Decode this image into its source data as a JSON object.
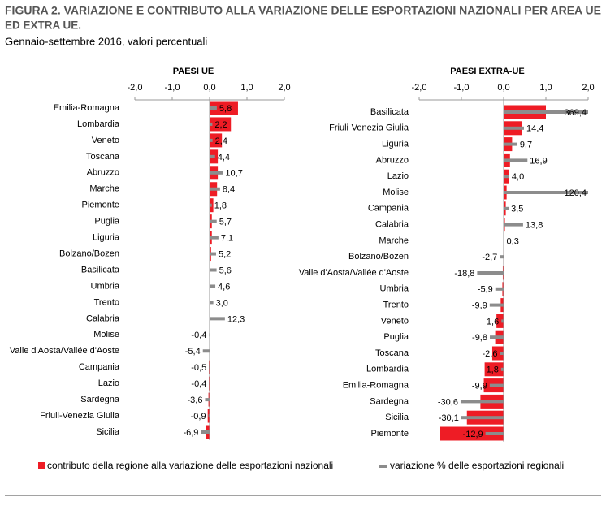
{
  "title": [
    "FIGURA 2. VARIAZIONE E CONTRIBUTO ALLA VARIAZIONE DELLE ESPORTAZIONI NAZIONALI PER AREA UE",
    "ED EXTRA UE."
  ],
  "subtitle": "Gennaio-settembre 2016, valori percentuali",
  "chart_data": [
    {
      "type": "bar",
      "orientation": "horizontal",
      "title": "PAESI UE",
      "categories": [
        "Emilia-Romagna",
        "Lombardia",
        "Veneto",
        "Toscana",
        "Abruzzo",
        "Marche",
        "Piemonte",
        "Puglia",
        "Liguria",
        "Bolzano/Bozen",
        "Basilicata",
        "Umbria",
        "Trento",
        "Calabria",
        "Molise",
        "Valle d'Aosta/Vallée d'Aoste",
        "Campania",
        "Lazio",
        "Sardegna",
        "Friuli-Venezia Giulia",
        "Sicilia"
      ],
      "xlim": [
        -2,
        2
      ],
      "x2lim": [
        -60,
        60
      ],
      "xticks": [
        {
          "value": -2,
          "label": "-2,0"
        },
        {
          "value": -1,
          "label": "-1,0"
        },
        {
          "value": 0,
          "label": "0,0"
        },
        {
          "value": 1,
          "label": "1,0"
        },
        {
          "value": 2,
          "label": "2,0"
        }
      ],
      "series": [
        {
          "name": "contributo della regione alla variazione delle esportazioni nazionali",
          "color": "#ee1c25",
          "values": [
            0.76,
            0.57,
            0.33,
            0.22,
            0.22,
            0.2,
            0.1,
            0.06,
            0.06,
            0.04,
            0.02,
            0.02,
            0.02,
            0.01,
            -0.01,
            -0.01,
            -0.02,
            -0.02,
            -0.03,
            -0.05,
            -0.1
          ]
        },
        {
          "name": "variazione % delle esportazioni regionali",
          "color": "#8c8c8c",
          "axis": "x2",
          "values": [
            5.8,
            2.2,
            2.4,
            4.4,
            10.7,
            8.4,
            1.8,
            5.7,
            7.1,
            5.2,
            5.6,
            4.6,
            3.0,
            12.3,
            -0.4,
            -5.4,
            -0.5,
            -0.4,
            -3.6,
            -0.9,
            -6.9
          ],
          "value_labels": [
            "5,8",
            "2,2",
            "2,4",
            "4,4",
            "10,7",
            "8,4",
            "1,8",
            "5,7",
            "7,1",
            "5,2",
            "5,6",
            "4,6",
            "3,0",
            "12,3",
            "-0,4",
            "-5,4",
            "-0,5",
            "-0,4",
            "-3,6",
            "-0,9",
            "-6,9"
          ]
        }
      ]
    },
    {
      "type": "bar",
      "orientation": "horizontal",
      "title": "PAESI EXTRA-UE",
      "categories": [
        "Basilicata",
        "Friuli-Venezia Giulia",
        "Liguria",
        "Abruzzo",
        "Lazio",
        "Molise",
        "Campania",
        "Calabria",
        "Marche",
        "Bolzano/Bozen",
        "Valle d'Aosta/Vallée d'Aoste",
        "Umbria",
        "Trento",
        "Veneto",
        "Puglia",
        "Toscana",
        "Lombardia",
        "Emilia-Romagna",
        "Sardegna",
        "Sicilia",
        "Piemonte"
      ],
      "xlim": [
        -2,
        2
      ],
      "x2lim": [
        -60,
        60
      ],
      "xticks": [
        {
          "value": -2,
          "label": "-2,0"
        },
        {
          "value": -1,
          "label": "-1,0"
        },
        {
          "value": 0,
          "label": "0,0"
        },
        {
          "value": 1,
          "label": "1,0"
        },
        {
          "value": 2,
          "label": "2,0"
        }
      ],
      "series": [
        {
          "color": "#ee1c25",
          "values": [
            1.0,
            0.44,
            0.2,
            0.15,
            0.13,
            0.07,
            0.05,
            0.03,
            0.01,
            -0.01,
            -0.02,
            -0.03,
            -0.07,
            -0.17,
            -0.2,
            -0.27,
            -0.45,
            -0.47,
            -0.55,
            -0.87,
            -1.5
          ]
        },
        {
          "color": "#8c8c8c",
          "axis": "x2",
          "values": [
            369.4,
            14.4,
            9.7,
            16.9,
            4.0,
            120.4,
            3.5,
            13.8,
            0.3,
            -2.7,
            -18.8,
            -5.9,
            -9.9,
            -1.6,
            -9.8,
            -2.6,
            -1.8,
            -9.9,
            -30.6,
            -30.1,
            -12.9
          ],
          "value_labels": [
            "369,4",
            "14,4",
            "9,7",
            "16,9",
            "4,0",
            "120,4",
            "3,5",
            "13,8",
            "0,3",
            "-2,7",
            "-18,8",
            "-5,9",
            "-9,9",
            "-1,6",
            "-9,8",
            "-2,6",
            "-1,8",
            "-9,9",
            "-30,6",
            "-30,1",
            "-12,9"
          ]
        }
      ]
    }
  ]
}
